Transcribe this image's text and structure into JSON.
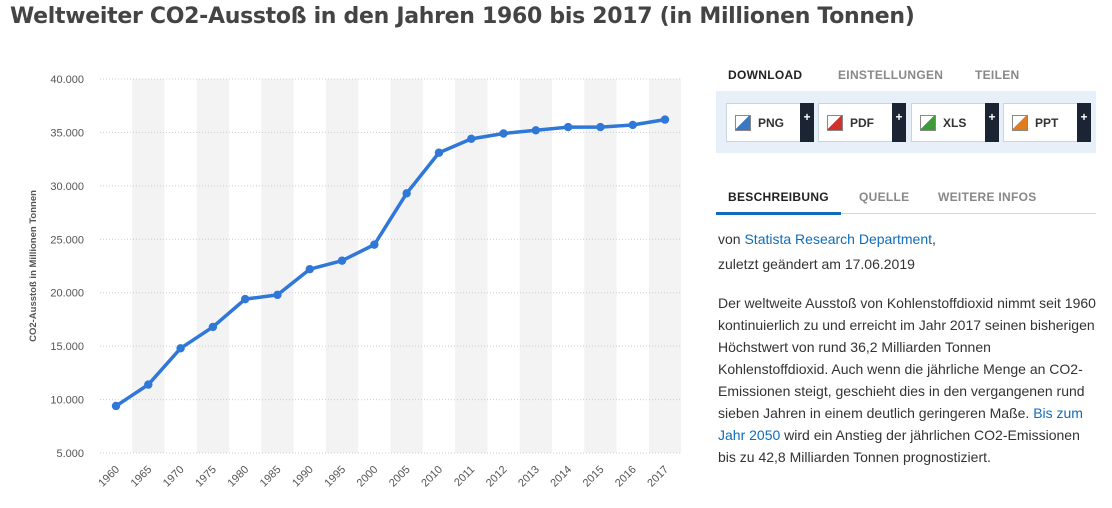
{
  "title": "Weltweiter CO2-Ausstoß in den Jahren 1960 bis 2017 (in Millionen Tonnen)",
  "tabs_top": [
    "DOWNLOAD",
    "EINSTELLUNGEN",
    "TEILEN"
  ],
  "downloads": [
    {
      "label": "PNG",
      "icon": "png-file-icon",
      "color": "#3a78c2"
    },
    {
      "label": "PDF",
      "icon": "pdf-file-icon",
      "color": "#d0312d"
    },
    {
      "label": "XLS",
      "icon": "xls-file-icon",
      "color": "#3f9a3a"
    },
    {
      "label": "PPT",
      "icon": "ppt-file-icon",
      "color": "#e07b1f"
    }
  ],
  "download_plus": "+",
  "tabs_bottom": [
    "BESCHREIBUNG",
    "QUELLE",
    "WEITERE INFOS"
  ],
  "source": {
    "prefix": "von ",
    "author": "Statista Research Department",
    "suffix": ",",
    "changed": "zuletzt geändert am 17.06.2019"
  },
  "description": {
    "part1": "Der weltweite Ausstoß von Kohlenstoffdioxid nimmt seit 1960 kontinuierlich zu und erreicht im Jahr 2017 seinen bisherigen Höchstwert von rund 36,2 Milliarden Tonnen Kohlenstoffdioxid. Auch wenn die jährliche Menge an CO2-Emissionen steigt, geschieht dies in den vergangenen rund sieben Jahren in einem deutlich geringeren Maße. ",
    "link": "Bis zum Jahr 2050",
    "part2": " wird ein Anstieg der jährlichen CO2-Emissionen bis zu 42,8 Milliarden Tonnen prognostiziert."
  },
  "colors": {
    "line": "#2f78d8",
    "accent": "#0f6cba",
    "band": "#f3f3f3",
    "grid": "#cccccc"
  },
  "chart_data": {
    "type": "line",
    "title": "",
    "xlabel": "",
    "ylabel": "CO2-Ausstoß in Millionen Tonnen",
    "categories": [
      "1960",
      "1965",
      "1970",
      "1975",
      "1980",
      "1985",
      "1990",
      "1995",
      "2000",
      "2005",
      "2010",
      "2011",
      "2012",
      "2013",
      "2014",
      "2015",
      "2016",
      "2017"
    ],
    "values": [
      9400,
      11400,
      14800,
      16800,
      19400,
      19800,
      22200,
      23000,
      24500,
      29300,
      33100,
      34400,
      34900,
      35200,
      35500,
      35500,
      35700,
      36200
    ],
    "yticks": [
      5000,
      10000,
      15000,
      20000,
      25000,
      30000,
      35000,
      40000
    ],
    "ytick_labels": [
      "5.000",
      "10.000",
      "15.000",
      "20.000",
      "25.000",
      "30.000",
      "35.000",
      "40.000"
    ],
    "ylim": [
      5000,
      40000
    ],
    "grid": true,
    "legend": "none",
    "alternating_bands": true
  }
}
